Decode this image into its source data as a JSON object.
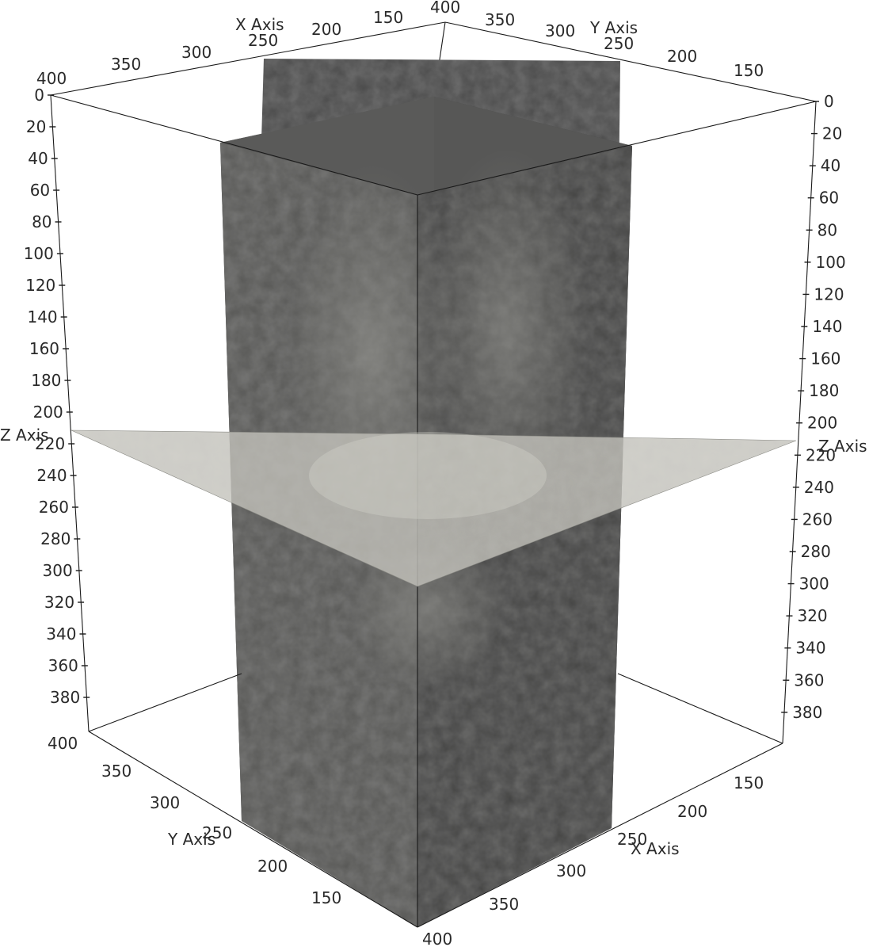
{
  "axes": {
    "x_title": "X Axis",
    "y_title": "Y Axis",
    "z_title": "Z Axis",
    "x_ticks_top": [
      "400",
      "350",
      "300",
      "250",
      "200",
      "150"
    ],
    "y_ticks_top": [
      "350",
      "300",
      "250",
      "200",
      "150"
    ],
    "x_ticks_bottom": [
      "250",
      "300",
      "350",
      "400"
    ],
    "x_ticks_bottom_right": [
      "150",
      "200"
    ],
    "y_ticks_bottom": [
      "400",
      "350",
      "300",
      "250",
      "200",
      "150"
    ],
    "z_ticks_left": [
      "0",
      "20",
      "40",
      "60",
      "80",
      "100",
      "120",
      "140",
      "160",
      "180",
      "200",
      "220",
      "240",
      "260",
      "280",
      "300",
      "320",
      "340",
      "360",
      "380"
    ],
    "z_ticks_right": [
      "0",
      "20",
      "40",
      "60",
      "80",
      "100",
      "120",
      "140",
      "160",
      "180",
      "200",
      "220",
      "240",
      "260",
      "280",
      "300",
      "320",
      "340",
      "360",
      "380"
    ],
    "corner_top": "400"
  },
  "slices": {
    "x_plane_color": "#505050",
    "y_plane_color": "#464646",
    "z_plane_color": "#b9b8b0"
  }
}
